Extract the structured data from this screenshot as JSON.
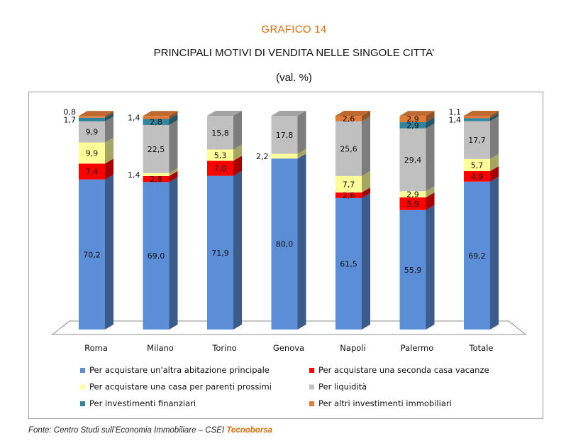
{
  "header": {
    "label": "GRAFICO 14",
    "title": "PRINCIPALI MOTIVI DI VENDITA NELLE SINGOLE CITTA’",
    "subtitle": "(val. %)"
  },
  "footer": {
    "source_text": "Fonte: Centro Studi sull’Economia Immobiliare  – CSEI ",
    "source_brand": "Tecnoborsa"
  },
  "chart_data": {
    "type": "bar",
    "stacked": true,
    "three_d": true,
    "categories": [
      "Roma",
      "Milano",
      "Torino",
      "Genova",
      "Napoli",
      "Palermo",
      "Totale"
    ],
    "series": [
      {
        "name": "Per acquistare un'altra abitazione  principale",
        "color": "#5B8ED6",
        "values": [
          70.2,
          69.0,
          71.9,
          80.0,
          61.5,
          55.9,
          69.2
        ],
        "labels": [
          "70,2",
          "69,0",
          "71,9",
          "80,0",
          "61,5",
          "55,9",
          "69,2"
        ]
      },
      {
        "name": "Per acquistare una seconda casa vacanze",
        "color": "#FF0000",
        "values": [
          7.4,
          2.8,
          7.0,
          0,
          2.6,
          5.9,
          4.9
        ],
        "labels": [
          "7,4",
          "2,8",
          "7,0",
          "",
          "2,6",
          "5,9",
          "4,9"
        ]
      },
      {
        "name": "Per acquistare una casa per parenti prossimi",
        "color": "#FFFF99",
        "values": [
          9.9,
          1.4,
          5.3,
          2.2,
          7.7,
          2.9,
          5.7
        ],
        "labels": [
          "9,9",
          "1,4",
          "5,3",
          "2,2",
          "7,7",
          "2,9",
          "5,7"
        ]
      },
      {
        "name": "Per liquidità",
        "color": "#C0C0C0",
        "values": [
          9.9,
          22.5,
          15.8,
          17.8,
          25.6,
          29.4,
          17.7
        ],
        "labels": [
          "9,9",
          "22,5",
          "15,8",
          "17,8",
          "25,6",
          "29,4",
          "17,7"
        ]
      },
      {
        "name": "Per investimenti finanziari",
        "color": "#31849B",
        "values": [
          1.7,
          2.8,
          0,
          0,
          0,
          2.9,
          1.4
        ],
        "labels": [
          "1,7",
          "2,8",
          "",
          "",
          "",
          "2,9",
          "1,4"
        ]
      },
      {
        "name": "Per altri investimenti immobiliari",
        "color": "#E07B39",
        "values": [
          0.8,
          1.4,
          0,
          0,
          2.6,
          2.9,
          1.1
        ],
        "labels": [
          "0,8",
          "1,4",
          "",
          "",
          "2,6",
          "2,9",
          "1,1"
        ]
      }
    ],
    "ylim": [
      0,
      100
    ],
    "grid": false,
    "legend_position": "bottom"
  }
}
